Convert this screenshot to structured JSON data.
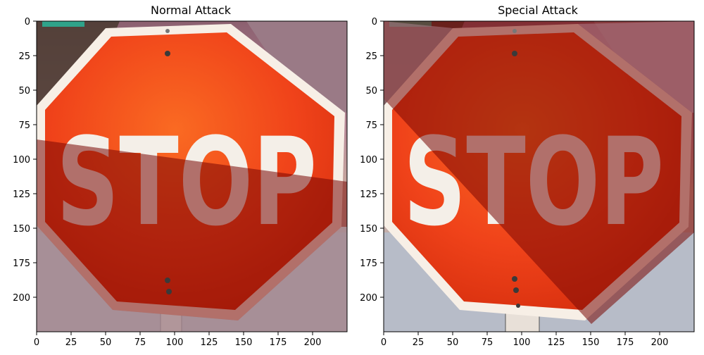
{
  "panels": [
    {
      "title": "Normal Attack",
      "image": "stop-sign-with-straight-shadow-band",
      "x_ticks": [
        "0",
        "25",
        "50",
        "75",
        "100",
        "125",
        "150",
        "175",
        "200"
      ],
      "y_ticks": [
        "0",
        "25",
        "50",
        "75",
        "100",
        "125",
        "150",
        "175",
        "200"
      ]
    },
    {
      "title": "Special Attack",
      "image": "stop-sign-with-diagonal-shadow-band",
      "x_ticks": [
        "0",
        "25",
        "50",
        "75",
        "100",
        "125",
        "150",
        "175",
        "200"
      ],
      "y_ticks": [
        "0",
        "25",
        "50",
        "75",
        "100",
        "125",
        "150",
        "175",
        "200"
      ]
    }
  ],
  "sign": {
    "text": "STOP",
    "colors": {
      "red": "#f0431a",
      "shadowed_red": "#a40a07",
      "border": "#f7efe6",
      "shadowed_border": "#807a6a",
      "sky": "#b07a8f",
      "ground": "#b4bac8"
    }
  }
}
